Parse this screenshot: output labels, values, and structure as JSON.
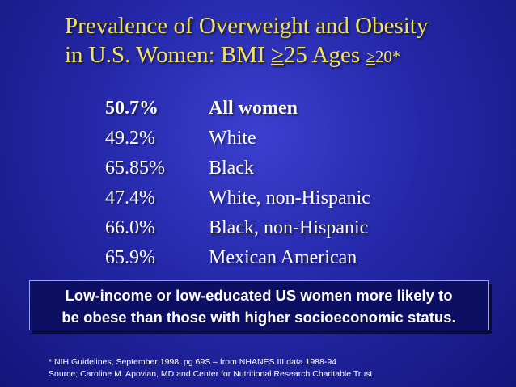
{
  "title": {
    "line1": "Prevalence of Overweight and Obesity",
    "line2_prefix": "in U.S. Women:  BMI ",
    "line2_ge1": "≥",
    "line2_value1": "25   Ages ",
    "line2_ge2": "≥",
    "line2_value2": "20*"
  },
  "rows": [
    {
      "percent": "50.7%",
      "group": "All women"
    },
    {
      "percent": "49.2%",
      "group": "White"
    },
    {
      "percent": "65.85%",
      "group": "Black"
    },
    {
      "percent": "47.4%",
      "group": "White, non-Hispanic"
    },
    {
      "percent": "66.0%",
      "group": "Black, non-Hispanic"
    },
    {
      "percent": "65.9%",
      "group": "Mexican American"
    }
  ],
  "banner": {
    "line1": "Low-income or low-educated US women more likely to",
    "line2": "be obese than those with higher socioeconomic status."
  },
  "footnotes": {
    "line1": "* NIH Guidelines, September 1998, pg 69S – from NHANES III  data 1988-94",
    "line2": "Source;  Caroline M. Apovian, MD and Center for Nutritional Research Charitable Trust"
  },
  "colors": {
    "title": "#f2e25a",
    "background": "#2428a8",
    "banner": "#0d0f62"
  }
}
